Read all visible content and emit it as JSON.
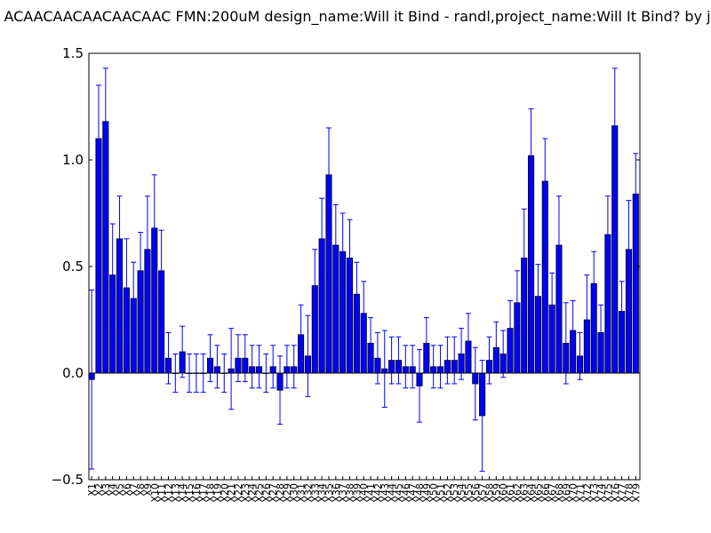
{
  "chart_data": {
    "type": "bar",
    "title": "ACAACAACAACAACAAC  FMN:200uM  design_name:Will it Bind - randl,project_name:Will It Bind? by j",
    "xlabel": "",
    "ylabel": "",
    "ylim": [
      -0.5,
      1.5
    ],
    "yticks": [
      -0.5,
      0.0,
      0.5,
      1.0,
      1.5
    ],
    "ytick_labels": [
      "−0.5",
      "0.0",
      "0.5",
      "1.0",
      "1.5"
    ],
    "grid": false,
    "colors": {
      "bar": "#0000ff",
      "bar_edge": "#000000",
      "errorbar": "#0000ff",
      "axis": "#000000",
      "zero_line": "#000000"
    },
    "categories": [
      "X1",
      "X2",
      "X3",
      "X4",
      "X5",
      "X6",
      "X7",
      "X8",
      "X9",
      "X10",
      "X11",
      "X12",
      "X13",
      "X14",
      "X15",
      "X16",
      "X17",
      "X18",
      "X19",
      "X20",
      "X21",
      "X22",
      "X23",
      "X24",
      "X25",
      "X26",
      "X27",
      "X28",
      "X29",
      "X30",
      "X31",
      "X32",
      "X33",
      "X34",
      "X35",
      "X36",
      "X37",
      "X38",
      "X39",
      "X40",
      "X41",
      "X42",
      "X43",
      "X44",
      "X45",
      "X46",
      "X47",
      "X48",
      "X49",
      "X50",
      "X51",
      "X52",
      "X53",
      "X54",
      "X55",
      "X56",
      "X57",
      "X58",
      "X59",
      "X60",
      "X61",
      "X62",
      "X63",
      "X64",
      "X65",
      "X66",
      "X67",
      "X68",
      "X69",
      "X70",
      "X71",
      "X72",
      "X73",
      "X74",
      "X75",
      "X76",
      "X77",
      "X78",
      "X79"
    ],
    "values": [
      -0.03,
      1.1,
      1.18,
      0.46,
      0.63,
      0.4,
      0.35,
      0.48,
      0.58,
      0.68,
      0.48,
      0.07,
      0.0,
      0.1,
      0.0,
      0.0,
      0.0,
      0.07,
      0.03,
      0.0,
      0.02,
      0.07,
      0.07,
      0.03,
      0.03,
      0.0,
      0.03,
      -0.08,
      0.03,
      0.03,
      0.18,
      0.08,
      0.41,
      0.63,
      0.93,
      0.6,
      0.57,
      0.54,
      0.37,
      0.28,
      0.14,
      0.07,
      0.02,
      0.06,
      0.06,
      0.03,
      0.03,
      -0.06,
      0.14,
      0.03,
      0.03,
      0.06,
      0.06,
      0.09,
      0.15,
      -0.05,
      -0.2,
      0.06,
      0.12,
      0.09,
      0.21,
      0.33,
      0.54,
      1.02,
      0.36,
      0.9,
      0.32,
      0.6,
      0.14,
      0.2,
      0.08,
      0.25,
      0.42,
      0.19,
      0.65,
      1.16,
      0.29,
      0.58,
      0.84
    ],
    "errors": [
      0.42,
      0.25,
      0.25,
      0.24,
      0.2,
      0.23,
      0.17,
      0.18,
      0.25,
      0.25,
      0.19,
      0.12,
      0.09,
      0.12,
      0.09,
      0.09,
      0.09,
      0.11,
      0.1,
      0.09,
      0.19,
      0.11,
      0.11,
      0.1,
      0.1,
      0.09,
      0.1,
      0.16,
      0.1,
      0.1,
      0.14,
      0.19,
      0.17,
      0.19,
      0.22,
      0.19,
      0.18,
      0.18,
      0.15,
      0.15,
      0.12,
      0.12,
      0.18,
      0.11,
      0.11,
      0.1,
      0.1,
      0.17,
      0.12,
      0.1,
      0.1,
      0.11,
      0.11,
      0.12,
      0.13,
      0.17,
      0.26,
      0.11,
      0.12,
      0.11,
      0.13,
      0.15,
      0.23,
      0.22,
      0.15,
      0.2,
      0.15,
      0.23,
      0.19,
      0.14,
      0.11,
      0.21,
      0.15,
      0.13,
      0.18,
      0.27,
      0.14,
      0.23,
      0.19
    ]
  }
}
